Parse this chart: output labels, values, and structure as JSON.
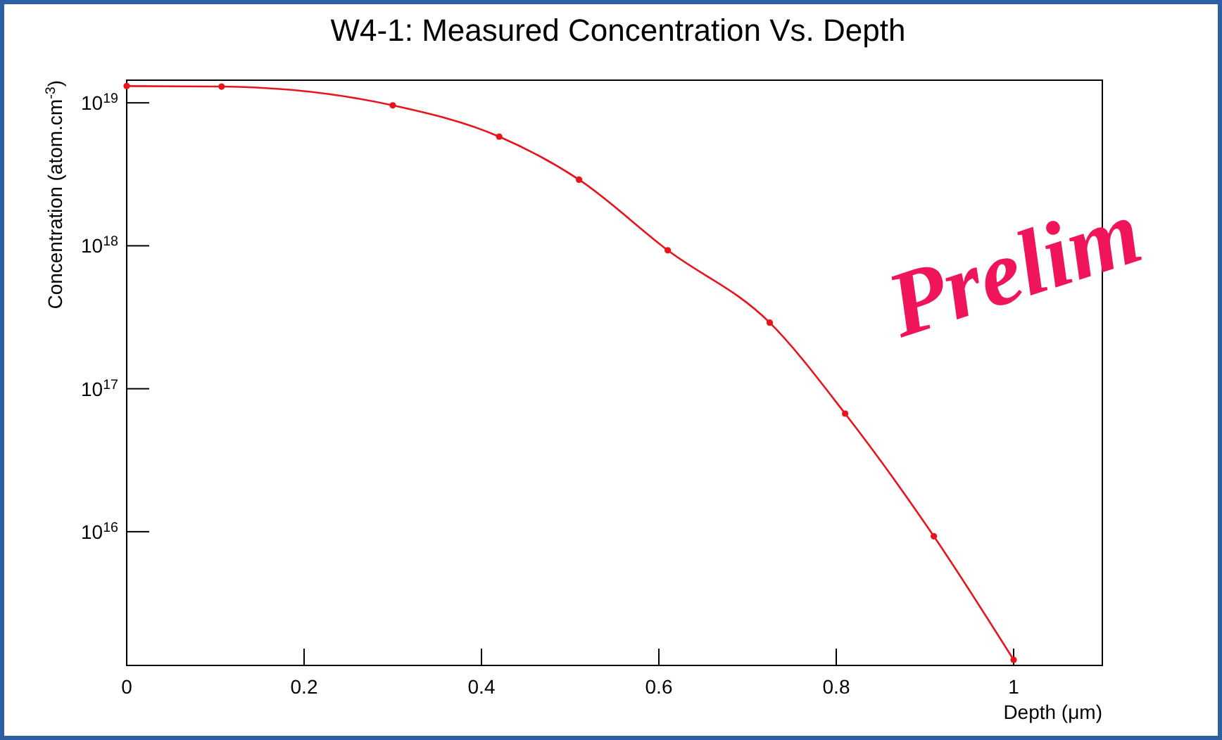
{
  "chart_data": {
    "type": "line",
    "title": "W4-1: Measured Concentration Vs. Depth",
    "xlabel": "Depth (μm)",
    "ylabel": "Concentration (atom.cm$^{-3}$)",
    "x": [
      0,
      0.107,
      0.3,
      0.42,
      0.51,
      0.61,
      0.725,
      0.81,
      0.91,
      1.0
    ],
    "series": [
      {
        "color": "#e8141c",
        "values": [
          1.31e+19,
          1.3e+19,
          9.6e+18,
          5.8e+18,
          2.9e+18,
          9.3e+17,
          2.9e+17,
          6.7e+16,
          9300000000000000.0,
          1270000000000000.0
        ]
      }
    ],
    "xlim": [
      0,
      1.1
    ],
    "xticks": [
      0,
      0.2,
      0.4,
      0.6,
      0.8,
      1
    ],
    "ylim": [
      1160000000000000.0,
      1.44e+19
    ],
    "yticks": [
      {
        "value": 1e+16,
        "label": "10$^{16}$"
      },
      {
        "value": 1e+17,
        "label": "10$^{17}$"
      },
      {
        "value": 1e+18,
        "label": "10$^{18}$"
      },
      {
        "value": 1e+19,
        "label": "10$^{19}$"
      }
    ],
    "log": "y",
    "grid": false,
    "marker": "circle",
    "line_style": "solid",
    "annotations": [
      {
        "text": "Prelim"
      }
    ]
  }
}
